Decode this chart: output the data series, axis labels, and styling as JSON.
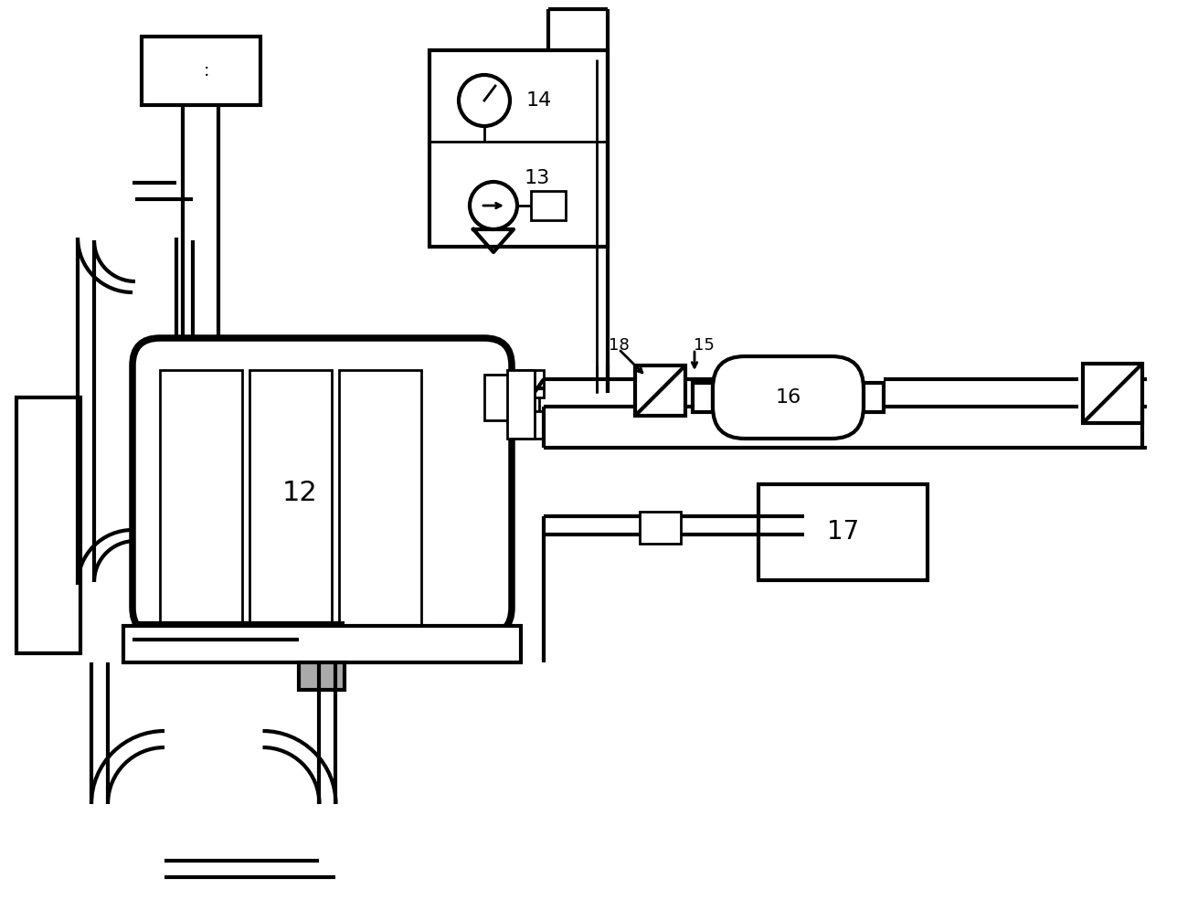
{
  "bg": "#ffffff",
  "lc": "#000000",
  "lw": 3.0,
  "lw2": 2.0,
  "fs_large": 20,
  "fs_med": 16,
  "fs_small": 13
}
